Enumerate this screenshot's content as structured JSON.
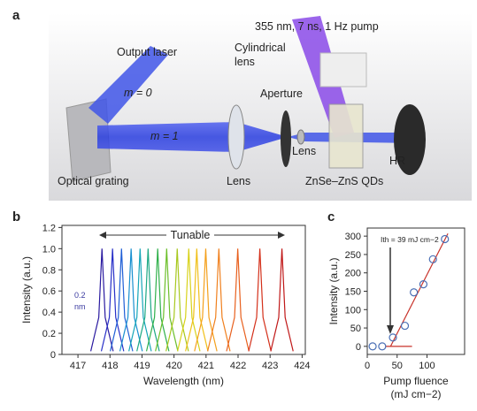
{
  "panels": [
    "a",
    "b",
    "c"
  ],
  "diagram": {
    "labels": [
      "355 nm, 7 ns, 1 Hz pump",
      "Cylindrical",
      "lens",
      "Output laser",
      "m = 0",
      "m = 1",
      "Aperture",
      "Lens",
      "Optical grating",
      "Lens",
      "ZnSe–ZnS QDs",
      "HR"
    ]
  },
  "chart_data": [
    {
      "type": "line",
      "xlabel": "Wavelength (nm)",
      "ylabel": "Intensity (a.u.)",
      "xlim": [
        416.5,
        424.1
      ],
      "ylim": [
        0,
        1.22
      ],
      "xticks": [
        417,
        418,
        419,
        420,
        421,
        422,
        423,
        424
      ],
      "yticks": [
        0,
        0.2,
        0.4,
        0.6,
        0.8,
        {
          "value": 1,
          "label": "1.0"
        },
        1.2
      ],
      "annotations": [
        "Tunable",
        "0.2",
        "nm"
      ],
      "series": [
        {
          "color": "#2a1aa0",
          "x": [
            417.4,
            417.65,
            417.75,
            417.85,
            418.1
          ],
          "values": [
            0.03,
            0.35,
            1.0,
            0.35,
            0.03
          ]
        },
        {
          "color": "#2830c8",
          "x": [
            417.73,
            417.98,
            418.08,
            418.18,
            418.43
          ],
          "values": [
            0.03,
            0.35,
            1.0,
            0.35,
            0.03
          ]
        },
        {
          "color": "#1f5fd6",
          "x": [
            418.01,
            418.26,
            418.36,
            418.46,
            418.71
          ],
          "values": [
            0.03,
            0.35,
            1.0,
            0.35,
            0.03
          ]
        },
        {
          "color": "#1990d0",
          "x": [
            418.31,
            418.56,
            418.66,
            418.76,
            419.01
          ],
          "values": [
            0.03,
            0.35,
            1.0,
            0.35,
            0.03
          ]
        },
        {
          "color": "#16a6b8",
          "x": [
            418.59,
            418.84,
            418.94,
            419.04,
            419.29
          ],
          "values": [
            0.03,
            0.35,
            1.0,
            0.35,
            0.03
          ]
        },
        {
          "color": "#1ca884",
          "x": [
            418.84,
            419.09,
            419.19,
            419.29,
            419.54
          ],
          "values": [
            0.03,
            0.35,
            1.0,
            0.35,
            0.03
          ]
        },
        {
          "color": "#2fb04a",
          "x": [
            419.14,
            419.39,
            419.49,
            419.59,
            419.84
          ],
          "values": [
            0.03,
            0.35,
            1.0,
            0.35,
            0.03
          ]
        },
        {
          "color": "#6cbf2a",
          "x": [
            419.42,
            419.67,
            419.77,
            419.87,
            420.12
          ],
          "values": [
            0.03,
            0.35,
            1.0,
            0.35,
            0.03
          ]
        },
        {
          "color": "#a8c81e",
          "x": [
            419.75,
            420.0,
            420.1,
            420.2,
            420.45
          ],
          "values": [
            0.03,
            0.35,
            1.0,
            0.35,
            0.03
          ]
        },
        {
          "color": "#d8d21a",
          "x": [
            420.11,
            420.36,
            420.46,
            420.56,
            420.81
          ],
          "values": [
            0.03,
            0.35,
            1.0,
            0.35,
            0.03
          ]
        },
        {
          "color": "#f0c01a",
          "x": [
            420.36,
            420.61,
            420.71,
            420.81,
            421.06
          ],
          "values": [
            0.03,
            0.35,
            1.0,
            0.35,
            0.03
          ]
        },
        {
          "color": "#f4a01c",
          "x": [
            420.64,
            420.89,
            420.99,
            421.09,
            421.34
          ],
          "values": [
            0.03,
            0.35,
            1.0,
            0.35,
            0.03
          ]
        },
        {
          "color": "#f0801e",
          "x": [
            421.05,
            421.3,
            421.4,
            421.5,
            421.75
          ],
          "values": [
            0.03,
            0.35,
            1.0,
            0.35,
            0.03
          ]
        },
        {
          "color": "#e8601e",
          "x": [
            421.64,
            421.89,
            421.99,
            422.09,
            422.34
          ],
          "values": [
            0.03,
            0.35,
            1.0,
            0.35,
            0.03
          ]
        },
        {
          "color": "#d4301a",
          "x": [
            422.33,
            422.58,
            422.68,
            422.78,
            423.03
          ],
          "values": [
            0.03,
            0.35,
            1.0,
            0.35,
            0.03
          ]
        },
        {
          "color": "#c01818",
          "x": [
            423.02,
            423.27,
            423.37,
            423.47,
            423.72
          ],
          "values": [
            0.03,
            0.35,
            1.0,
            0.35,
            0.03
          ]
        }
      ]
    },
    {
      "type": "scatter",
      "xlabel": "Pump fluence",
      "xlabel_unit": "(mJ cm−2)",
      "ylabel": "Intensity (a.u.)",
      "xlim": [
        0,
        163
      ],
      "ylim": [
        -22,
        322
      ],
      "xticks": [
        0,
        50,
        100
      ],
      "yticks": [
        0,
        50,
        100,
        150,
        200,
        250,
        300
      ],
      "annotations": [
        "Ith = 39 mJ cm−2"
      ],
      "series": [
        {
          "color": "#4a6fb5",
          "x": [
            9,
            25,
            43,
            63,
            78,
            94,
            110,
            130
          ],
          "values": [
            0,
            0,
            24,
            56,
            147,
            169,
            237,
            292
          ]
        }
      ],
      "fit": [
        {
          "color": "#c8322a",
          "x": [
            30,
            75
          ],
          "values": [
            0,
            0
          ]
        },
        {
          "color": "#c8322a",
          "x": [
            39,
            135
          ],
          "values": [
            0,
            307
          ]
        }
      ]
    }
  ]
}
